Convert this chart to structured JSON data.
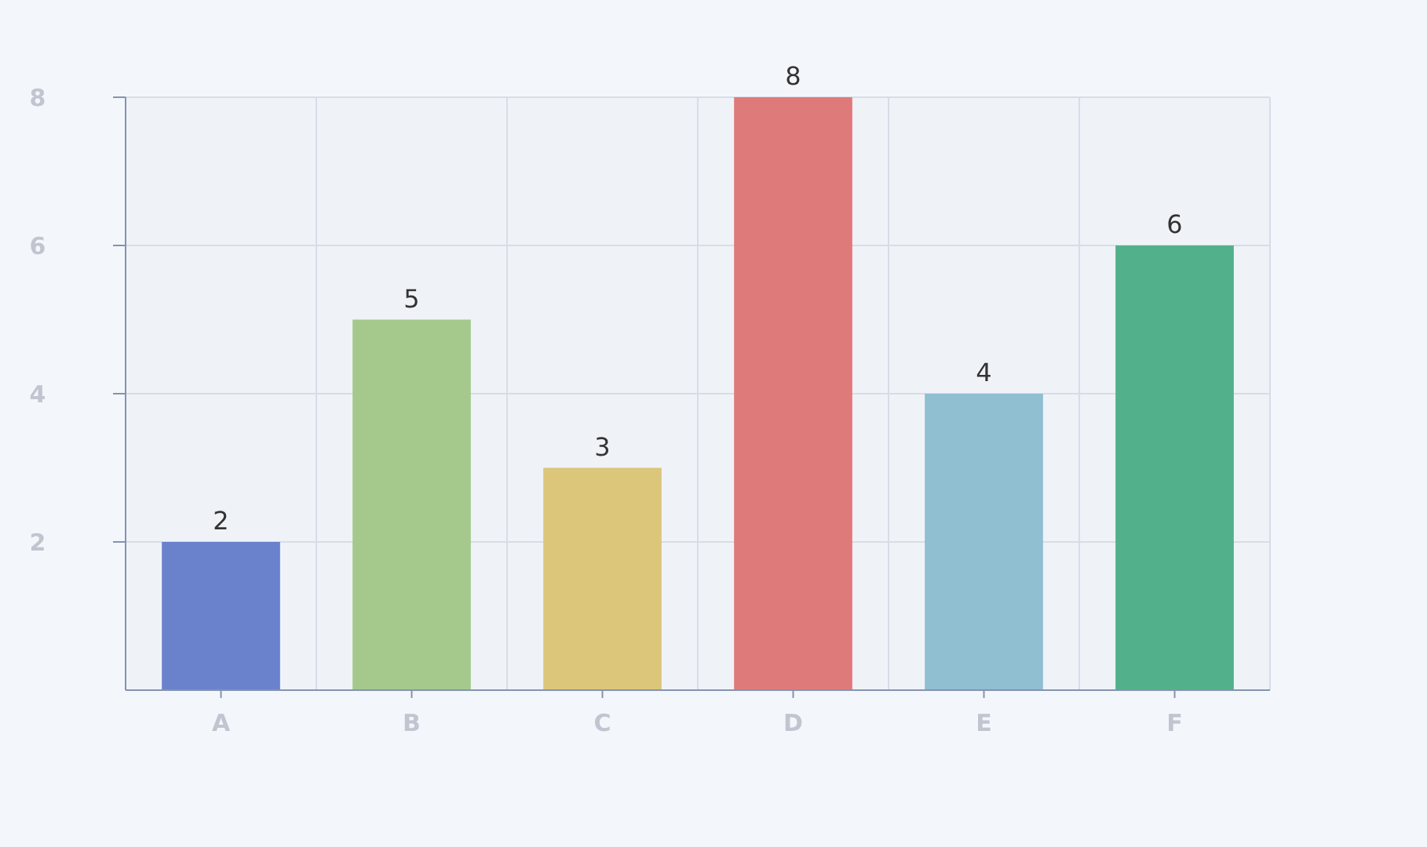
{
  "chart_data": {
    "type": "bar",
    "categories": [
      "A",
      "B",
      "C",
      "D",
      "E",
      "F"
    ],
    "values": [
      2,
      5,
      3,
      8,
      4,
      6
    ],
    "colors": [
      "#6a82cc",
      "#a5c98c",
      "#dcc67a",
      "#df7a7a",
      "#8fbfd1",
      "#52b08a"
    ],
    "ylim": [
      0,
      8
    ],
    "yticks": [
      2,
      4,
      6,
      8
    ],
    "grid": true,
    "data_labels": true
  }
}
